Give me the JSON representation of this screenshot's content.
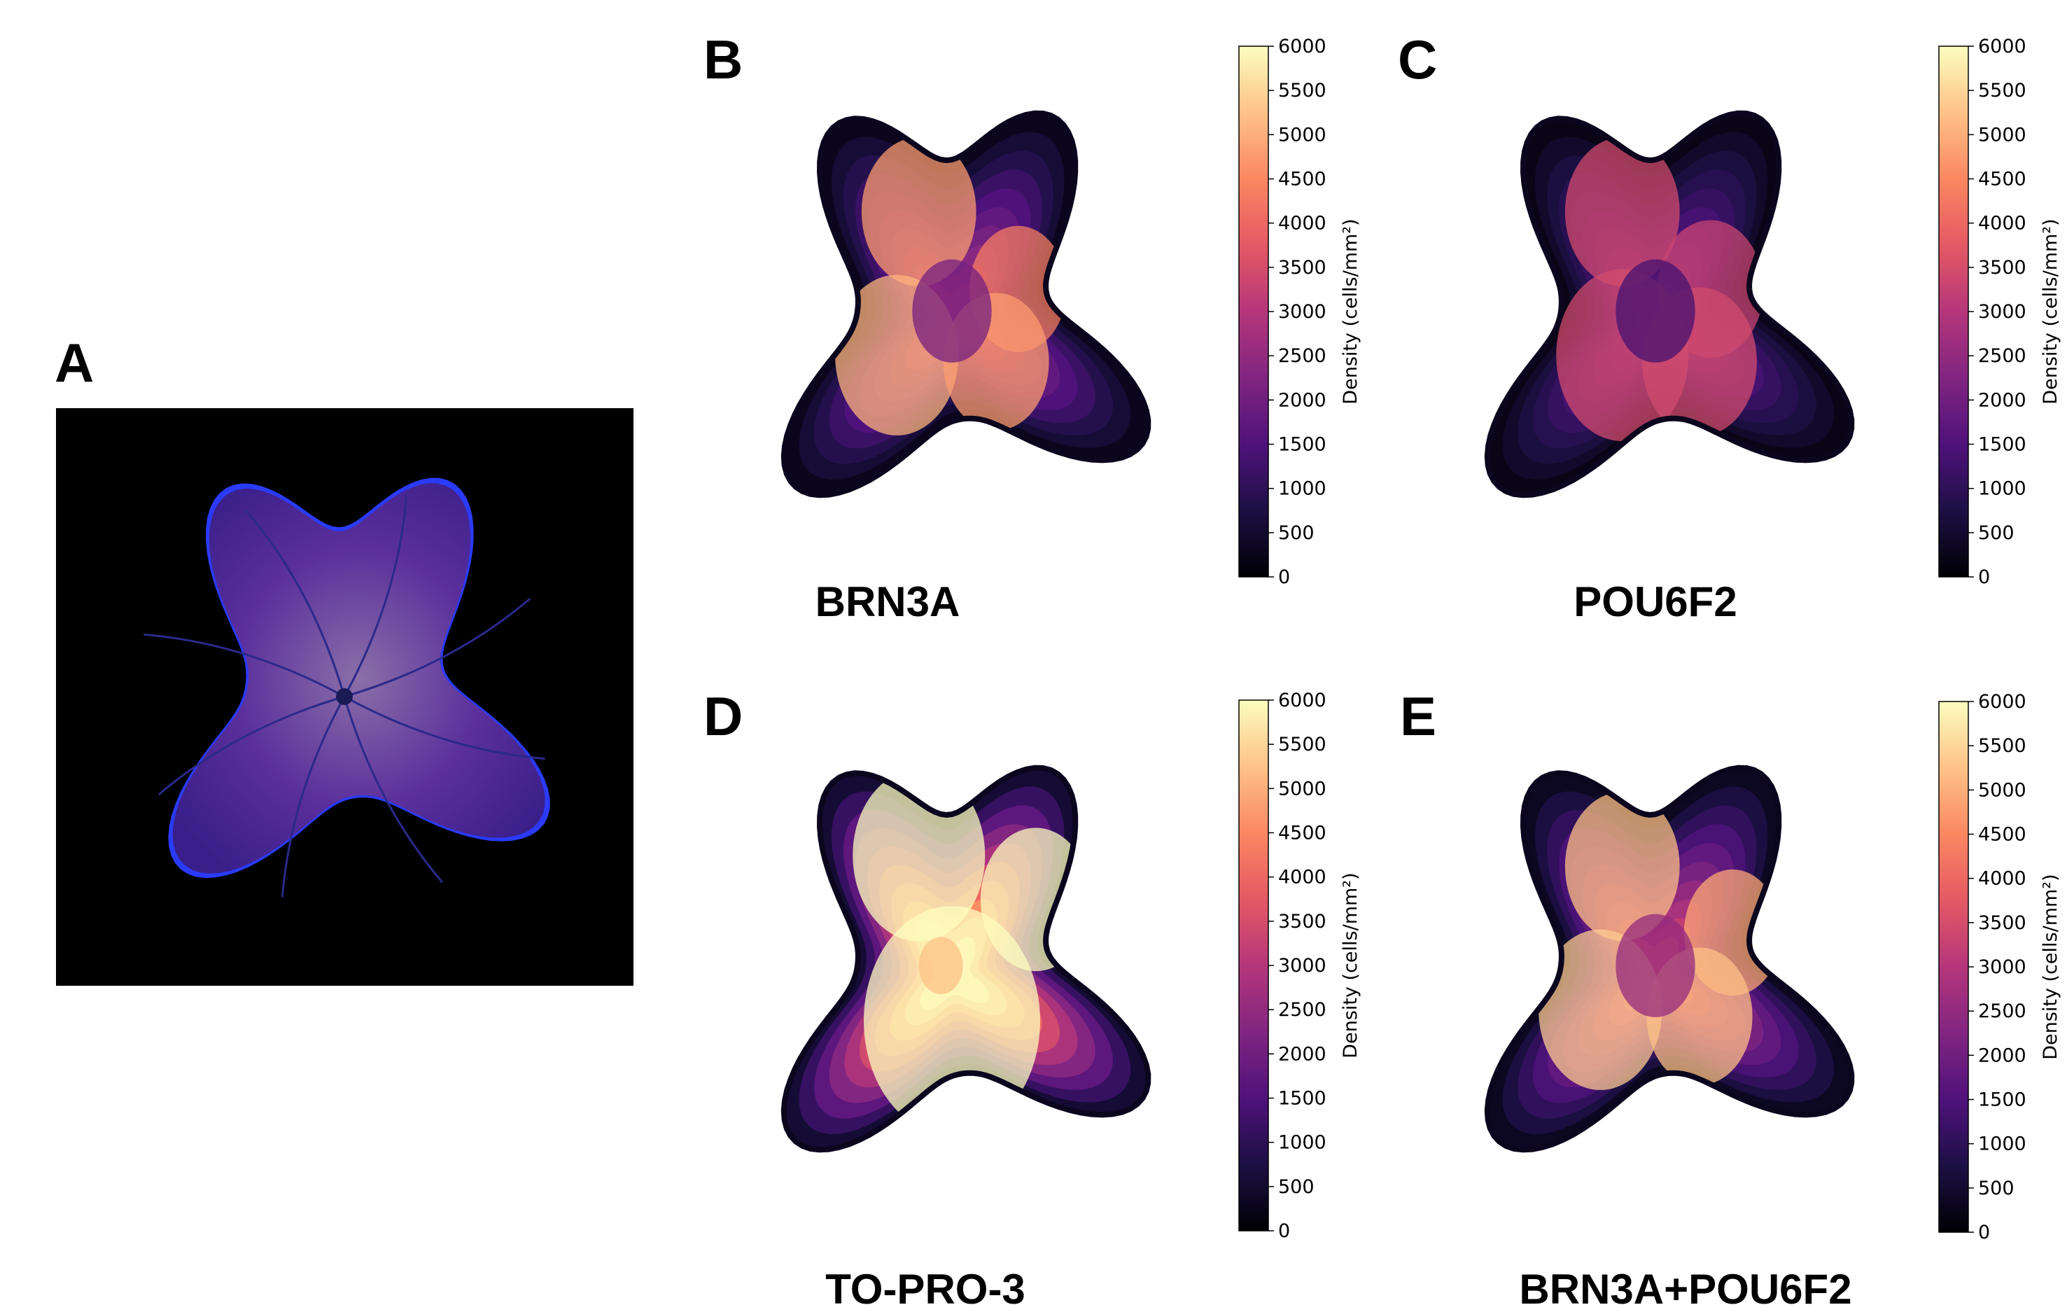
{
  "panel_a": {
    "letter": "A"
  },
  "panels": [
    {
      "id": "B",
      "letter": "B",
      "caption": "BRN3A",
      "colormap": "magma",
      "level_scale": 0.52,
      "hotspots": [
        [
          -0.15,
          -0.5,
          0.26,
          0.55
        ],
        [
          0.3,
          -0.15,
          0.22,
          0.4
        ],
        [
          -0.25,
          0.15,
          0.28,
          0.65
        ],
        [
          0.2,
          0.18,
          0.24,
          0.55
        ],
        [
          0,
          -0.05,
          0.18,
          -0.35
        ]
      ]
    },
    {
      "id": "C",
      "letter": "C",
      "caption": "POU6F2",
      "colormap": "magma",
      "level_scale": 0.4,
      "hotspots": [
        [
          -0.15,
          -0.5,
          0.26,
          0.35
        ],
        [
          0.25,
          -0.15,
          0.24,
          0.3
        ],
        [
          -0.15,
          0.15,
          0.3,
          0.35
        ],
        [
          0.2,
          0.18,
          0.26,
          0.35
        ],
        [
          0,
          -0.05,
          0.18,
          -0.35
        ]
      ]
    },
    {
      "id": "D",
      "letter": "D",
      "caption": "TO-PRO-3",
      "colormap": "magma",
      "level_scale": 1.0,
      "hotspots": [
        [
          -0.15,
          -0.55,
          0.3,
          0.4
        ],
        [
          0.38,
          -0.35,
          0.25,
          0.35
        ],
        [
          0,
          0.2,
          0.4,
          0.35
        ],
        [
          -0.05,
          -0.05,
          0.1,
          -0.25
        ]
      ]
    },
    {
      "id": "E",
      "letter": "E",
      "caption": "BRN3A+POU6F2",
      "colormap": "magma",
      "level_scale": 0.62,
      "hotspots": [
        [
          -0.15,
          -0.5,
          0.26,
          0.5
        ],
        [
          0.35,
          -0.2,
          0.22,
          0.4
        ],
        [
          -0.25,
          0.15,
          0.28,
          0.55
        ],
        [
          0.2,
          0.18,
          0.24,
          0.5
        ],
        [
          0,
          -0.05,
          0.18,
          -0.4
        ]
      ]
    }
  ],
  "colorbar": {
    "label": "Density (cells/mm²)",
    "ticks": [
      "0",
      "500",
      "1000",
      "1500",
      "2000",
      "2500",
      "3000",
      "3500",
      "4000",
      "4500",
      "5000",
      "5500",
      "6000"
    ],
    "min": 0,
    "max": 6000
  },
  "colors": {
    "magma_stops": [
      "#000004",
      "#1c1044",
      "#4f127b",
      "#812581",
      "#b5367a",
      "#e55964",
      "#fb8761",
      "#fec287",
      "#fcfdbf"
    ],
    "flatmount_background": "#000000",
    "flatmount_tissue": "#5a2c9a",
    "flatmount_edge": "#2a3bff"
  }
}
